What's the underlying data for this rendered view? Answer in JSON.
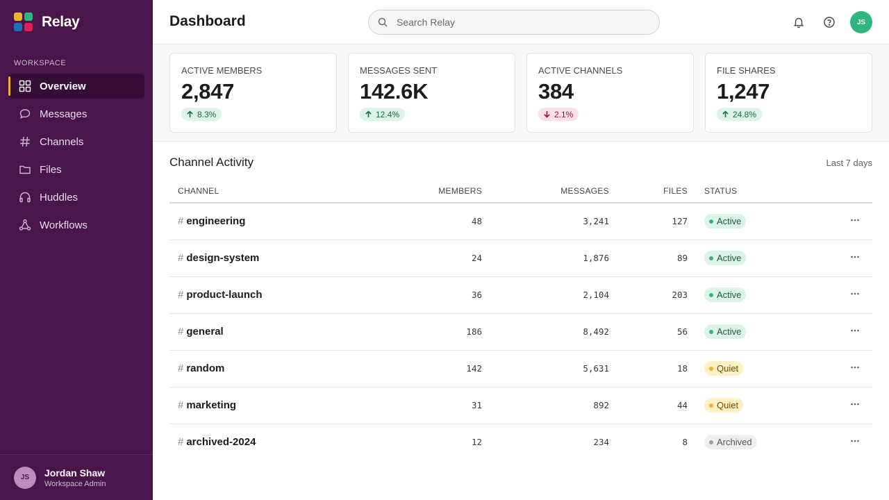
{
  "app": {
    "name": "Relay"
  },
  "sidebar": {
    "section_label": "Workspace",
    "items": [
      {
        "label": "Overview",
        "icon": "grid-icon",
        "active": true
      },
      {
        "label": "Messages",
        "icon": "chat-bubble-icon",
        "active": false
      },
      {
        "label": "Channels",
        "icon": "hash-icon",
        "active": false
      },
      {
        "label": "Files",
        "icon": "folder-icon",
        "active": false
      },
      {
        "label": "Huddles",
        "icon": "headphones-icon",
        "active": false
      },
      {
        "label": "Workflows",
        "icon": "workflow-icon",
        "active": false
      }
    ],
    "user": {
      "initials": "JS",
      "name": "Jordan Shaw",
      "role": "Workspace Admin"
    }
  },
  "header": {
    "title": "Dashboard",
    "search_placeholder": "Search Relay",
    "avatar_initials": "JS"
  },
  "stats": [
    {
      "label": "Active Members",
      "value": "2,847",
      "delta": "8.3%",
      "direction": "up"
    },
    {
      "label": "Messages Sent",
      "value": "142.6K",
      "delta": "12.4%",
      "direction": "up"
    },
    {
      "label": "Active Channels",
      "value": "384",
      "delta": "2.1%",
      "direction": "down"
    },
    {
      "label": "File Shares",
      "value": "1,247",
      "delta": "24.8%",
      "direction": "up"
    }
  ],
  "activity": {
    "title": "Channel Activity",
    "range": "Last 7 days",
    "columns": {
      "channel": "Channel",
      "members": "Members",
      "messages": "Messages",
      "files": "Files",
      "status": "Status"
    },
    "rows": [
      {
        "channel": "engineering",
        "members": "48",
        "messages": "3,241",
        "files": "127",
        "status": "Active"
      },
      {
        "channel": "design-system",
        "members": "24",
        "messages": "1,876",
        "files": "89",
        "status": "Active"
      },
      {
        "channel": "product-launch",
        "members": "36",
        "messages": "2,104",
        "files": "203",
        "status": "Active"
      },
      {
        "channel": "general",
        "members": "186",
        "messages": "8,492",
        "files": "56",
        "status": "Active"
      },
      {
        "channel": "random",
        "members": "142",
        "messages": "5,631",
        "files": "18",
        "status": "Quiet"
      },
      {
        "channel": "marketing",
        "members": "31",
        "messages": "892",
        "files": "44",
        "status": "Quiet"
      },
      {
        "channel": "archived-2024",
        "members": "12",
        "messages": "234",
        "files": "8",
        "status": "Archived"
      }
    ]
  },
  "colors": {
    "sidebar_bg": "#4a154b",
    "accent_yellow": "#ecb22e",
    "accent_green": "#2eb67d",
    "accent_red": "#e01e5a"
  }
}
